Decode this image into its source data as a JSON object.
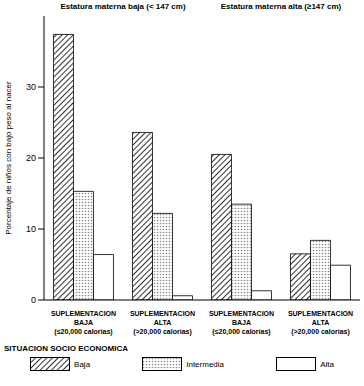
{
  "chart_data": {
    "type": "bar",
    "annotations": [
      "Estatura materna baja (< 147 cm)",
      "Estatura materna alta (≥147 cm)"
    ],
    "y_label": "Porcentaje de niños con bajo peso al nacer",
    "categories": [
      "SUPLEMENTACION\nBAJA\n(≤20,000 calorías)",
      "SUPLEMENTACION\nALTA\n(>20,000 calorías)",
      "SUPLEMENTACION\nBAJA\n(≤20,000 calorías)",
      "SUPLEMENTACION\nALTA\n(>20,000 calorías)"
    ],
    "series": [
      {
        "name": "Baja",
        "color": "#333333",
        "values": [
          37.4,
          23.6,
          20.5,
          6.5
        ]
      },
      {
        "name": "Intermedia",
        "color": "#888888",
        "values": [
          15.3,
          12.2,
          13.5,
          8.4
        ]
      },
      {
        "name": "Alta",
        "color": "#ffffff",
        "values": [
          6.4,
          0.6,
          1.3,
          4.9
        ]
      }
    ],
    "legend_title": "SITUACION SOCIO ECONOMICA",
    "legend": "bottom",
    "ylim": [
      0,
      40
    ],
    "yticks": [
      0,
      10,
      20,
      30
    ],
    "grid": false
  }
}
